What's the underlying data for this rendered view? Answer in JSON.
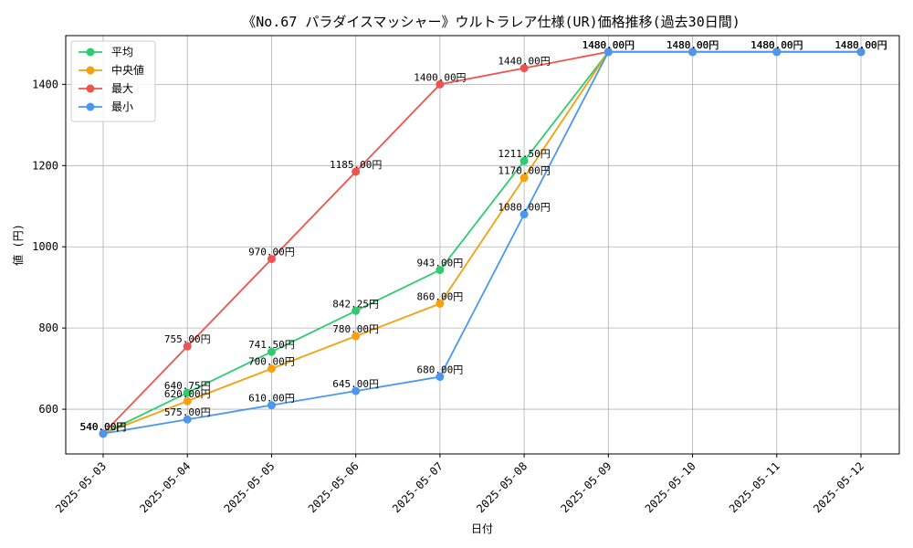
{
  "chart_data": {
    "type": "line",
    "title": "《No.67 パラダイスマッシャー》ウルトラレア仕様(UR)価格推移(過去30日間)",
    "xlabel": "日付",
    "ylabel": "値 (円)",
    "ylim": [
      490,
      1520
    ],
    "yticks": [
      600,
      800,
      1000,
      1200,
      1400
    ],
    "grid": true,
    "legend_position": "top-left",
    "value_suffix": "円",
    "categories": [
      "2025-05-03",
      "2025-05-04",
      "2025-05-05",
      "2025-05-06",
      "2025-05-07",
      "2025-05-08",
      "2025-05-09",
      "2025-05-10",
      "2025-05-11",
      "2025-05-12"
    ],
    "series": [
      {
        "name": "平均",
        "color": "#2ecc71",
        "values": [
          540.0,
          640.75,
          741.5,
          842.25,
          943.0,
          1211.5,
          1480.0,
          1480.0,
          1480.0,
          1480.0
        ]
      },
      {
        "name": "中央値",
        "color": "#f5a00c",
        "values": [
          540.0,
          620.0,
          700.0,
          780.0,
          860.0,
          1170.0,
          1480.0,
          1480.0,
          1480.0,
          1480.0
        ]
      },
      {
        "name": "最大",
        "color": "#ef5350",
        "values": [
          540.0,
          755.0,
          970.0,
          1185.0,
          1400.0,
          1440.0,
          1480.0,
          1480.0,
          1480.0,
          1480.0
        ]
      },
      {
        "name": "最小",
        "color": "#4a97f0",
        "values": [
          540.0,
          575.0,
          610.0,
          645.0,
          680.0,
          1080.0,
          1480.0,
          1480.0,
          1480.0,
          1480.0
        ]
      }
    ]
  }
}
